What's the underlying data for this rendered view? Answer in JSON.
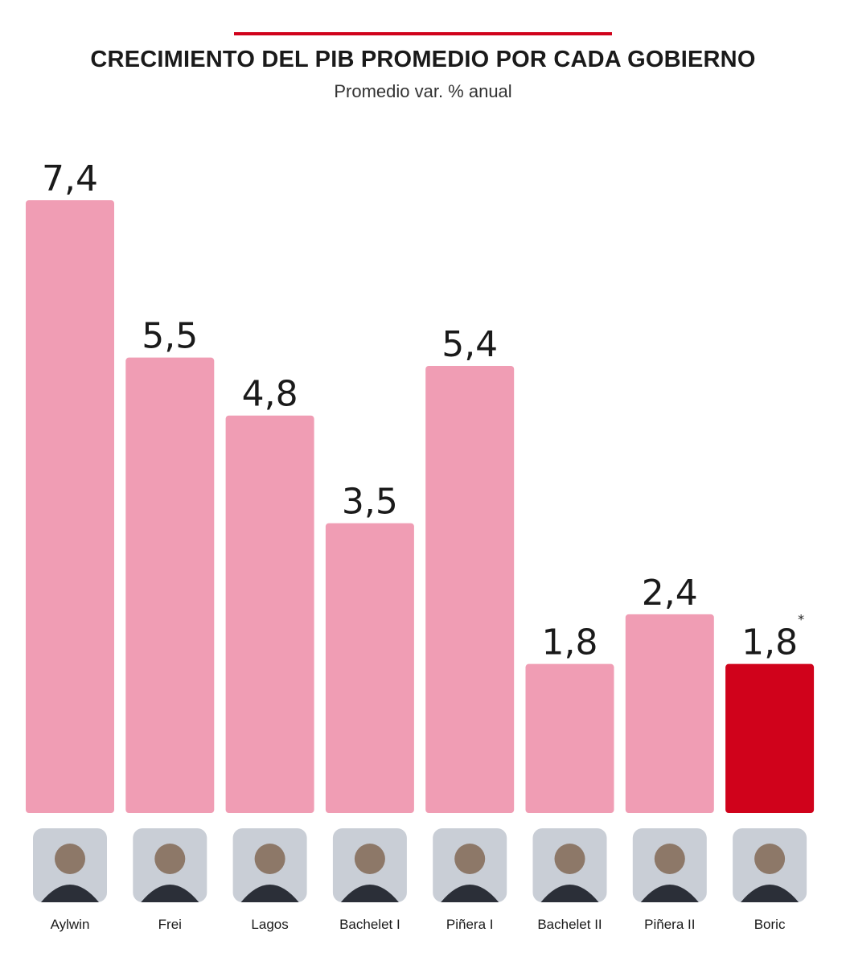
{
  "header": {
    "title": "CRECIMIENTO DEL PIB PROMEDIO POR CADA GOBIERNO",
    "subtitle": "Promedio var. % anual"
  },
  "colors": {
    "bar": "#f09db4",
    "highlight_bar": "#d0021b",
    "rule": "#d0021b"
  },
  "chart_data": {
    "type": "bar",
    "title": "CRECIMIENTO DEL PIB PROMEDIO POR CADA GOBIERNO",
    "subtitle": "Promedio var. % anual",
    "categories": [
      "Aylwin",
      "Frei",
      "Lagos",
      "Bachelet I",
      "Piñera I",
      "Bachelet II",
      "Piñera II",
      "Boric"
    ],
    "values": [
      7.4,
      5.5,
      4.8,
      3.5,
      5.4,
      1.8,
      2.4,
      1.8
    ],
    "value_labels": [
      "7,4",
      "5,5",
      "4,8",
      "3,5",
      "5,4",
      "1,8",
      "2,4",
      "1,8"
    ],
    "highlight": "Boric",
    "annotations": [
      {
        "category": "Boric",
        "text": "*"
      }
    ],
    "ylim": [
      0,
      7.4
    ],
    "xlabel": "",
    "ylabel": "",
    "grid": false,
    "legend": "none",
    "category_icons": "portrait-photo"
  }
}
